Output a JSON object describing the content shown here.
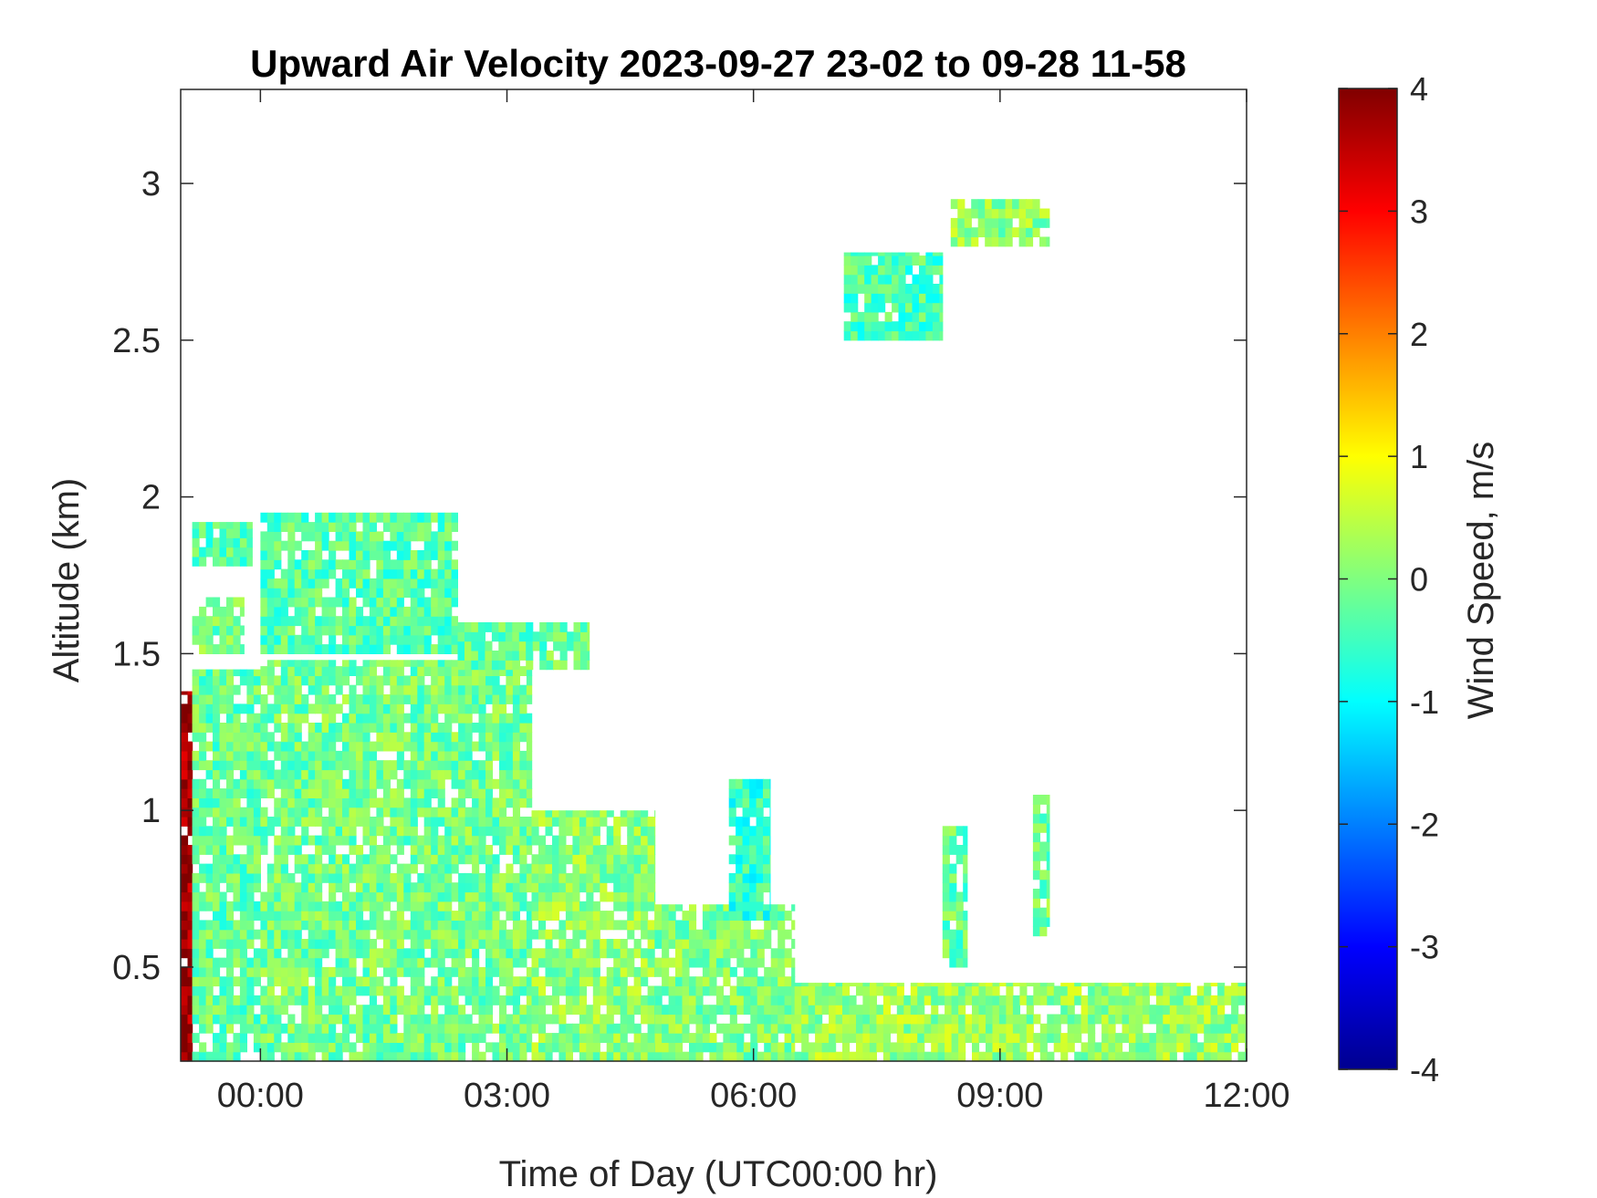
{
  "chart_data": {
    "type": "heatmap",
    "title": "Upward Air Velocity 2023-09-27 23-02 to 09-28 11-58",
    "xlabel": "Time of Day (UTC00:00 hr)",
    "ylabel": "Altitude (km)",
    "colorbar_label": "Wind Speed, m/s",
    "x_unit": "hours UTC relative to 2023-09-28 00:00",
    "xlim": [
      -0.97,
      12.0
    ],
    "ylim": [
      0.2,
      3.3
    ],
    "x_ticks": [
      {
        "value": 0,
        "label": "00:00"
      },
      {
        "value": 3,
        "label": "03:00"
      },
      {
        "value": 6,
        "label": "06:00"
      },
      {
        "value": 9,
        "label": "09:00"
      },
      {
        "value": 12,
        "label": "12:00"
      }
    ],
    "y_ticks": [
      {
        "value": 0.5,
        "label": "0.5"
      },
      {
        "value": 1.0,
        "label": "1"
      },
      {
        "value": 1.5,
        "label": "1.5"
      },
      {
        "value": 2.0,
        "label": "2"
      },
      {
        "value": 2.5,
        "label": "2.5"
      },
      {
        "value": 3.0,
        "label": "3"
      }
    ],
    "colorbar": {
      "colormap": "jet",
      "clim": [
        -4,
        4
      ],
      "ticks": [
        {
          "value": 4,
          "label": "4"
        },
        {
          "value": 3,
          "label": "3"
        },
        {
          "value": 2,
          "label": "2"
        },
        {
          "value": 1,
          "label": "1"
        },
        {
          "value": 0,
          "label": "0"
        },
        {
          "value": -1,
          "label": "-1"
        },
        {
          "value": -2,
          "label": "-2"
        },
        {
          "value": -3,
          "label": "-3"
        },
        {
          "value": -4,
          "label": "-4"
        }
      ]
    },
    "grid": false,
    "cell_width_hours": 0.083,
    "cell_height_km": 0.03,
    "regions": [
      {
        "x": [
          -0.97,
          -0.83
        ],
        "y": [
          0.2,
          1.38
        ],
        "value": 3.8
      },
      {
        "x": [
          -0.83,
          0.0
        ],
        "y": [
          0.2,
          1.45
        ],
        "value": -0.2
      },
      {
        "x": [
          -0.83,
          -0.2
        ],
        "y": [
          1.5,
          1.68
        ],
        "value": -0.1
      },
      {
        "x": [
          -0.83,
          -0.1
        ],
        "y": [
          1.78,
          1.92
        ],
        "value": -0.3
      },
      {
        "x": [
          0.0,
          3.3
        ],
        "y": [
          0.2,
          1.48
        ],
        "value": -0.1
      },
      {
        "x": [
          0.0,
          2.4
        ],
        "y": [
          1.5,
          1.95
        ],
        "value": -0.3
      },
      {
        "x": [
          2.4,
          4.0
        ],
        "y": [
          1.45,
          1.6
        ],
        "value": -0.2
      },
      {
        "x": [
          3.3,
          4.8
        ],
        "y": [
          0.2,
          1.0
        ],
        "value": 0.1
      },
      {
        "x": [
          4.8,
          6.5
        ],
        "y": [
          0.2,
          0.7
        ],
        "value": 0.0
      },
      {
        "x": [
          5.7,
          6.2
        ],
        "y": [
          0.65,
          1.1
        ],
        "value": -0.6
      },
      {
        "x": [
          6.5,
          12.0
        ],
        "y": [
          0.2,
          0.45
        ],
        "value": 0.2
      },
      {
        "x": [
          8.3,
          8.6
        ],
        "y": [
          0.5,
          0.95
        ],
        "value": -0.2
      },
      {
        "x": [
          9.4,
          9.6
        ],
        "y": [
          0.6,
          1.05
        ],
        "value": -0.1
      },
      {
        "x": [
          7.1,
          8.3
        ],
        "y": [
          2.5,
          2.78
        ],
        "value": -0.4
      },
      {
        "x": [
          8.4,
          9.6
        ],
        "y": [
          2.8,
          2.95
        ],
        "value": 0.1
      }
    ]
  }
}
